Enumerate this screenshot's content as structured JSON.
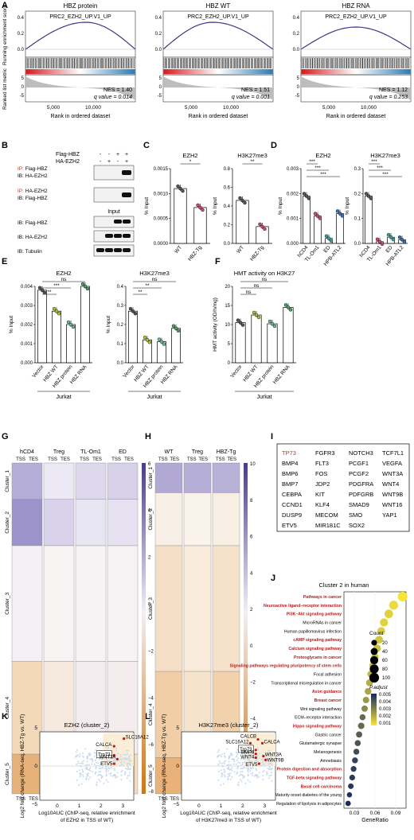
{
  "panel_letters": [
    "A",
    "B",
    "C",
    "D",
    "E",
    "F",
    "G",
    "H",
    "I",
    "J",
    "K",
    "L"
  ],
  "colors": {
    "red": "#e41a1c",
    "blue": "#3b6fb6",
    "purple": "#4a3a8c",
    "orange": "#c9761a",
    "yellow": "#f6e43a",
    "gsea_curve": "#3a3a8a",
    "ip_red": "#c0392b"
  },
  "panelA": {
    "gsea": [
      {
        "title": "HBZ protein",
        "geneset": "PRC2_EZH2_UP.V1_UP",
        "nes": "NES = 1.40",
        "q": "q value = 0.014"
      },
      {
        "title": "HBZ WT",
        "geneset": "PRC2_EZH2_UP.V1_UP",
        "nes": "NES = 1.51",
        "q": "q value = 0.001"
      },
      {
        "title": "HBZ RNA",
        "geneset": "PRC2_EZH2_UP.V1_UP",
        "nes": "NES = 1.12",
        "q": "q value = 0.253"
      }
    ],
    "ylabel_top": "Running enrichment score",
    "ylabel_bottom": "Ranked list metric",
    "xlabel": "Rank in ordered dataset",
    "ticks_top": [
      "0.4",
      "0.2",
      "0.0"
    ],
    "ticks_bottom": [
      "5",
      "0",
      "-5"
    ],
    "xticks": [
      "5,000",
      "10,000"
    ]
  },
  "panelB": {
    "row_headers": [
      "Flag-HBZ",
      "HA-EZH2"
    ],
    "signs": [
      [
        "-",
        "-",
        "+",
        "+"
      ],
      [
        "-",
        "+",
        "-",
        "+"
      ]
    ],
    "blots": [
      {
        "ip": "IP: ",
        "a": "Flag-HBZ",
        "b": "IB: HA-EZH2"
      },
      {
        "ip": "IP: ",
        "a": "HA-EZH2",
        "b": "IB: Flag-HBZ"
      }
    ],
    "input": "Input",
    "ib": [
      "IB: Flag-HBZ",
      "IB: HA-EZH2",
      "IB:  Tubulin"
    ]
  },
  "panelC": {
    "plots": [
      {
        "title": "EZH2",
        "ticks": [
          "0.0015",
          "0.0010",
          "0.0005",
          "0.0000"
        ],
        "sig": "*"
      },
      {
        "title": "H3K27me3",
        "ticks": [
          "0.8",
          "0.6",
          "0.4",
          "0.2",
          "0.0"
        ],
        "sig": "**"
      }
    ],
    "ylabel": "% Input",
    "categories": [
      "WT",
      "HBZ-Tg"
    ]
  },
  "panelD": {
    "plots": [
      {
        "title": "EZH2",
        "ticks": [
          "0.003",
          "0.002",
          "0.001",
          "0.000"
        ],
        "sig": [
          "***",
          "***",
          "***"
        ]
      },
      {
        "title": "H3K27me3",
        "ticks": [
          "0.3",
          "0.2",
          "0.1",
          "0.0"
        ],
        "sig": [
          "***",
          "***",
          "***"
        ]
      }
    ],
    "ylabel": "% Input",
    "categories": [
      "hCD4",
      "TL-Om1",
      "ED",
      "HPB-ATL2"
    ]
  },
  "panelE": {
    "plots": [
      {
        "title": "EZH2",
        "ticks": [
          "0.004",
          "0.003",
          "0.002",
          "0.001",
          "0.000"
        ],
        "sig": [
          "ns",
          "***",
          "**"
        ]
      },
      {
        "title": "H3K27me3",
        "ticks": [
          "0.4",
          "0.3",
          "0.2",
          "0.1",
          "0.0"
        ],
        "sig": [
          "ns",
          "**",
          "**"
        ]
      }
    ],
    "ylabel": "% Input",
    "categories": [
      "Vector",
      "HBZ WT",
      "HBZ protein",
      "HBZ RNA"
    ],
    "group": "Jurkat"
  },
  "panelF": {
    "title": "HMT activity on H3K27",
    "ylabel": "HMT activity (OD/h/mg)",
    "ticks": [
      "20",
      "15",
      "10",
      "5",
      "0"
    ],
    "sig": [
      "ns",
      "ns",
      "ns"
    ],
    "categories": [
      "Vector",
      "HBZ WT",
      "HBZ protein",
      "HBZ RNA"
    ],
    "group": "Jurkat"
  },
  "panelG": {
    "columns": [
      "hCD4",
      "Treg",
      "TL-Om1",
      "ED"
    ],
    "tss": "TSS",
    "tes": "TES",
    "clusters": [
      "Cluster_1",
      "Cluster_2",
      "Cluster_3",
      "Cluster_4",
      "Cluster_5"
    ],
    "scale": [
      "6",
      "4",
      "2",
      "0",
      "−2",
      "−4",
      "−6",
      "−8"
    ]
  },
  "panelH": {
    "columns": [
      "WT",
      "Treg",
      "HBZ-Tg"
    ],
    "tss": "TSS",
    "tes": "TES",
    "clusters": [
      "Cluster_1",
      "Cluster_2",
      "Cluster_3",
      "Cluster_4",
      "Cluster_5"
    ],
    "scale": [
      "10",
      "8",
      "6",
      "4",
      "2",
      "0",
      "−2",
      "−4",
      "−6",
      "−8"
    ]
  },
  "panelI": {
    "genes": [
      [
        "TP73",
        "FGFR3",
        "NOTCH3",
        "TCF7L1"
      ],
      [
        "BMP4",
        "FLT3",
        "PCGF1",
        "VEGFA"
      ],
      [
        "BMP6",
        "FOS",
        "PCGF2",
        "WNT3A"
      ],
      [
        "BMP7",
        "JDP2",
        "PDGFRA",
        "WNT4"
      ],
      [
        "CEBPA",
        "KIT",
        "PDFGRB",
        "WNT9B"
      ],
      [
        "CCND1",
        "KLF4",
        "SMAD9",
        "WNT16"
      ],
      [
        "DUSP9",
        "MECOM",
        "SMO",
        "YAP1"
      ],
      [
        "ETV5",
        "MIR181C",
        "SOX2",
        ""
      ]
    ]
  },
  "panelJ": {
    "title": "Cluster 2 in human",
    "terms": [
      {
        "label": "Pathways in cancer",
        "ratio": 0.1,
        "count": 100,
        "p": 0.0008,
        "hl": true
      },
      {
        "label": "Neuroactive ligand–receptor interaction",
        "ratio": 0.087,
        "count": 82,
        "p": 0.001,
        "hl": true
      },
      {
        "label": "PI3K–Akt signaling pathway",
        "ratio": 0.08,
        "count": 72,
        "p": 0.0012,
        "hl": true
      },
      {
        "label": "MicroRNAs in cancer",
        "ratio": 0.073,
        "count": 60,
        "p": 0.0012,
        "hl": false
      },
      {
        "label": "Human papillomavirus infection",
        "ratio": 0.069,
        "count": 55,
        "p": 0.0013,
        "hl": false
      },
      {
        "label": "cAMP signaling pathway",
        "ratio": 0.066,
        "count": 52,
        "p": 0.0015,
        "hl": true
      },
      {
        "label": "Calcium signaling pathway",
        "ratio": 0.063,
        "count": 48,
        "p": 0.0016,
        "hl": true
      },
      {
        "label": "Proteoglycans in cancer",
        "ratio": 0.06,
        "count": 44,
        "p": 0.0016,
        "hl": true
      },
      {
        "label": "Signaling pathways regulating pluripotency of stem cells",
        "ratio": 0.057,
        "count": 40,
        "p": 0.0017,
        "hl": true
      },
      {
        "label": "Focal adhesion",
        "ratio": 0.054,
        "count": 38,
        "p": 0.0018,
        "hl": false
      },
      {
        "label": "Transcriptional misregulation in cancer",
        "ratio": 0.052,
        "count": 36,
        "p": 0.002,
        "hl": false
      },
      {
        "label": "Axon guidance",
        "ratio": 0.05,
        "count": 34,
        "p": 0.0022,
        "hl": true
      },
      {
        "label": "Breast cancer",
        "ratio": 0.047,
        "count": 30,
        "p": 0.0025,
        "hl": true
      },
      {
        "label": "Wnt signaling pathway",
        "ratio": 0.045,
        "count": 28,
        "p": 0.0028,
        "hl": false
      },
      {
        "label": "ECM–receptor interaction",
        "ratio": 0.042,
        "count": 24,
        "p": 0.0035,
        "hl": false
      },
      {
        "label": "Hippo signaling pathway",
        "ratio": 0.04,
        "count": 30,
        "p": 0.0035,
        "hl": true
      },
      {
        "label": "Gastric cancer",
        "ratio": 0.037,
        "count": 26,
        "p": 0.0038,
        "hl": false
      },
      {
        "label": "Glutamatergic synapse",
        "ratio": 0.035,
        "count": 24,
        "p": 0.004,
        "hl": false
      },
      {
        "label": "Melanogenesis",
        "ratio": 0.033,
        "count": 22,
        "p": 0.0042,
        "hl": false
      },
      {
        "label": "Amoebiasis",
        "ratio": 0.031,
        "count": 22,
        "p": 0.0044,
        "hl": false
      },
      {
        "label": "Protein digestion and absorption",
        "ratio": 0.029,
        "count": 20,
        "p": 0.0045,
        "hl": true
      },
      {
        "label": "TGF-beta signaling pathway",
        "ratio": 0.027,
        "count": 20,
        "p": 0.0046,
        "hl": true
      },
      {
        "label": "Basal cell carcinoma",
        "ratio": 0.025,
        "count": 18,
        "p": 0.0047,
        "hl": true
      },
      {
        "label": "Maturity onset diabetes of the young",
        "ratio": 0.023,
        "count": 14,
        "p": 0.0048,
        "hl": false
      },
      {
        "label": "Regulation of lipolysis in adipocytes",
        "ratio": 0.021,
        "count": 16,
        "p": 0.0049,
        "hl": false
      }
    ],
    "xticks": [
      "0.03",
      "0.06",
      "0.09"
    ],
    "xlabel": "GeneRatio",
    "count_title": "Count",
    "count_levels": [
      "20",
      "40",
      "60",
      "80",
      "100"
    ],
    "p_title": "P.adjust",
    "p_levels": [
      "0.005",
      "0.004",
      "0.003",
      "0.002",
      "0.001"
    ]
  },
  "panelK": {
    "title": "EZH2 (cluster_2)",
    "ylabel": "Log2 fold change (RNA-seq, HBZ-Tg vs. WT)",
    "xlabel_1": "Log10AUC (ChIP-seq, relative enrichment",
    "xlabel_2": "of EZH2 in TSS of WT)",
    "xticks": [
      "0",
      "1",
      "2",
      "3"
    ],
    "yticks": [
      "5",
      "0",
      "−5"
    ],
    "genes": [
      "SLC16A12",
      "CALCA",
      "Trp73",
      "WNT3A",
      "ETV5"
    ]
  },
  "panelL": {
    "title": "H3K27me3 (cluster_2)",
    "ylabel": "Log2 fold change (RNA-seq, HBZ-Tg vs. WT)",
    "xlabel_1": "Log10AUC (ChIP-seq, relative enrichment",
    "xlabel_2": "of H3K27me3 in TSS of WT)",
    "xticks": [
      "0",
      "1",
      "2",
      "3"
    ],
    "yticks": [
      "5",
      "0",
      "−5"
    ],
    "genes": [
      "CALCB",
      "SLC16A12",
      "CALCA",
      "Trp73",
      "BMP6",
      "WNT4",
      "WNT3A",
      "WNT9B",
      "ETV5"
    ]
  },
  "chart_data": [
    {
      "type": "bar",
      "id": "C-EZH2",
      "title": "EZH2",
      "ylabel": "% Input",
      "categories": [
        "WT",
        "HBZ-Tg"
      ],
      "values": [
        0.0011,
        0.00072
      ],
      "ylim": [
        0,
        0.0015
      ]
    },
    {
      "type": "bar",
      "id": "C-H3K27me3",
      "title": "H3K27me3",
      "ylabel": "% Input",
      "categories": [
        "WT",
        "HBZ-Tg"
      ],
      "values": [
        0.46,
        0.18
      ],
      "ylim": [
        0,
        0.8
      ]
    },
    {
      "type": "bar",
      "id": "D-EZH2",
      "title": "EZH2",
      "ylabel": "% Input",
      "categories": [
        "hCD4",
        "TL-Om1",
        "ED",
        "HPB-ATL2"
      ],
      "values": [
        0.0019,
        0.0011,
        0.0002,
        0.0012
      ],
      "ylim": [
        0,
        0.003
      ]
    },
    {
      "type": "bar",
      "id": "D-H3K27me3",
      "title": "H3K27me3",
      "ylabel": "% Input",
      "categories": [
        "hCD4",
        "TL-Om1",
        "ED",
        "HPB-ATL2"
      ],
      "values": [
        0.19,
        0.007,
        0.025,
        0.015
      ],
      "ylim": [
        0,
        0.3
      ]
    },
    {
      "type": "bar",
      "id": "E-EZH2",
      "title": "EZH2",
      "ylabel": "% Input",
      "categories": [
        "Vector",
        "HBZ WT",
        "HBZ protein",
        "HBZ RNA"
      ],
      "values": [
        0.0038,
        0.0027,
        0.002,
        0.004
      ],
      "ylim": [
        0,
        0.004
      ]
    },
    {
      "type": "bar",
      "id": "E-H3K27me3",
      "title": "H3K27me3",
      "ylabel": "% Input",
      "categories": [
        "Vector",
        "HBZ WT",
        "HBZ protein",
        "HBZ RNA"
      ],
      "values": [
        0.27,
        0.12,
        0.11,
        0.18
      ],
      "ylim": [
        0,
        0.4
      ]
    },
    {
      "type": "bar",
      "id": "F",
      "title": "HMT activity on H3K27",
      "ylabel": "HMT activity (OD/h/mg)",
      "categories": [
        "Vector",
        "HBZ WT",
        "HBZ protein",
        "HBZ RNA"
      ],
      "values": [
        10.5,
        12.5,
        10.2,
        14.5
      ],
      "ylim": [
        0,
        20
      ]
    },
    {
      "type": "scatter",
      "id": "J",
      "title": "Cluster 2 in human",
      "xlabel": "GeneRatio",
      "note": "values listed in panelJ.terms"
    }
  ]
}
